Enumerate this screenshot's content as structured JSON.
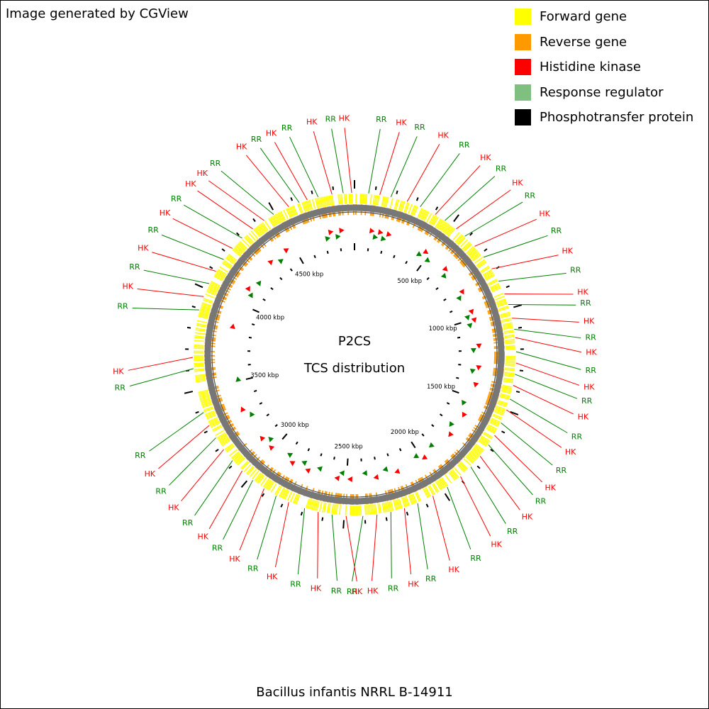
{
  "header": {
    "text": "Image generated by CGView"
  },
  "legend": [
    {
      "label": "Forward gene",
      "color": "#FFFF00"
    },
    {
      "label": "Reverse gene",
      "color": "#FF9900"
    },
    {
      "label": "Histidine kinase",
      "color": "#FF0000"
    },
    {
      "label": "Response regulator",
      "color": "#7FBF7F"
    },
    {
      "label": "Phosphotransfer protein",
      "color": "#000000"
    }
  ],
  "map": {
    "title_line1": "P2CS",
    "title_line2": "TCS distribution",
    "genome_length_kbp": 4900,
    "tick_labels": [
      "500 kbp",
      "1000 kbp",
      "1500 kbp",
      "2000 kbp",
      "2500 kbp",
      "3000 kbp",
      "3500 kbp",
      "4000 kbp",
      "4500 kbp"
    ],
    "gene_labels": {
      "hk": "HK",
      "rr": "RR"
    },
    "colors": {
      "forward": "#FFFF00",
      "reverse": "#FF9900",
      "backbone": "#777777",
      "hk": "#FF0000",
      "rr": "#008000"
    }
  },
  "footer": {
    "text": "Bacillus infantis NRRL B-14911"
  }
}
